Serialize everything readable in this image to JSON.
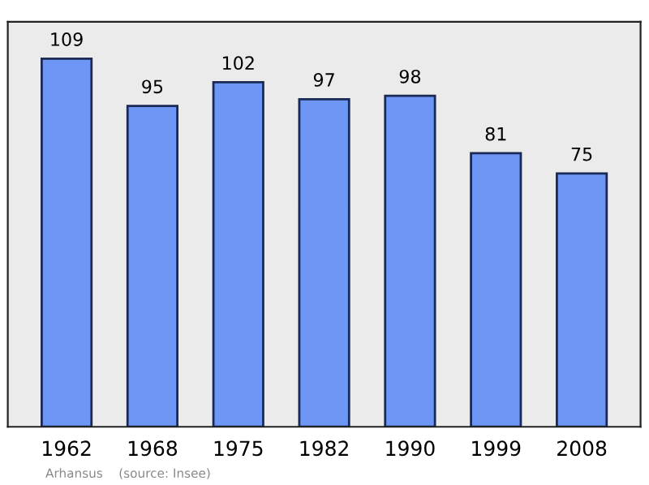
{
  "chart_data": {
    "type": "bar",
    "categories": [
      "1962",
      "1968",
      "1975",
      "1982",
      "1990",
      "1999",
      "2008"
    ],
    "values": [
      109,
      95,
      102,
      97,
      98,
      81,
      75
    ],
    "color": "#6e96f5",
    "data_labels": true,
    "grid": false,
    "tick_labels": "x",
    "annotations": [
      "Arhansus    (source: Insee)"
    ]
  }
}
